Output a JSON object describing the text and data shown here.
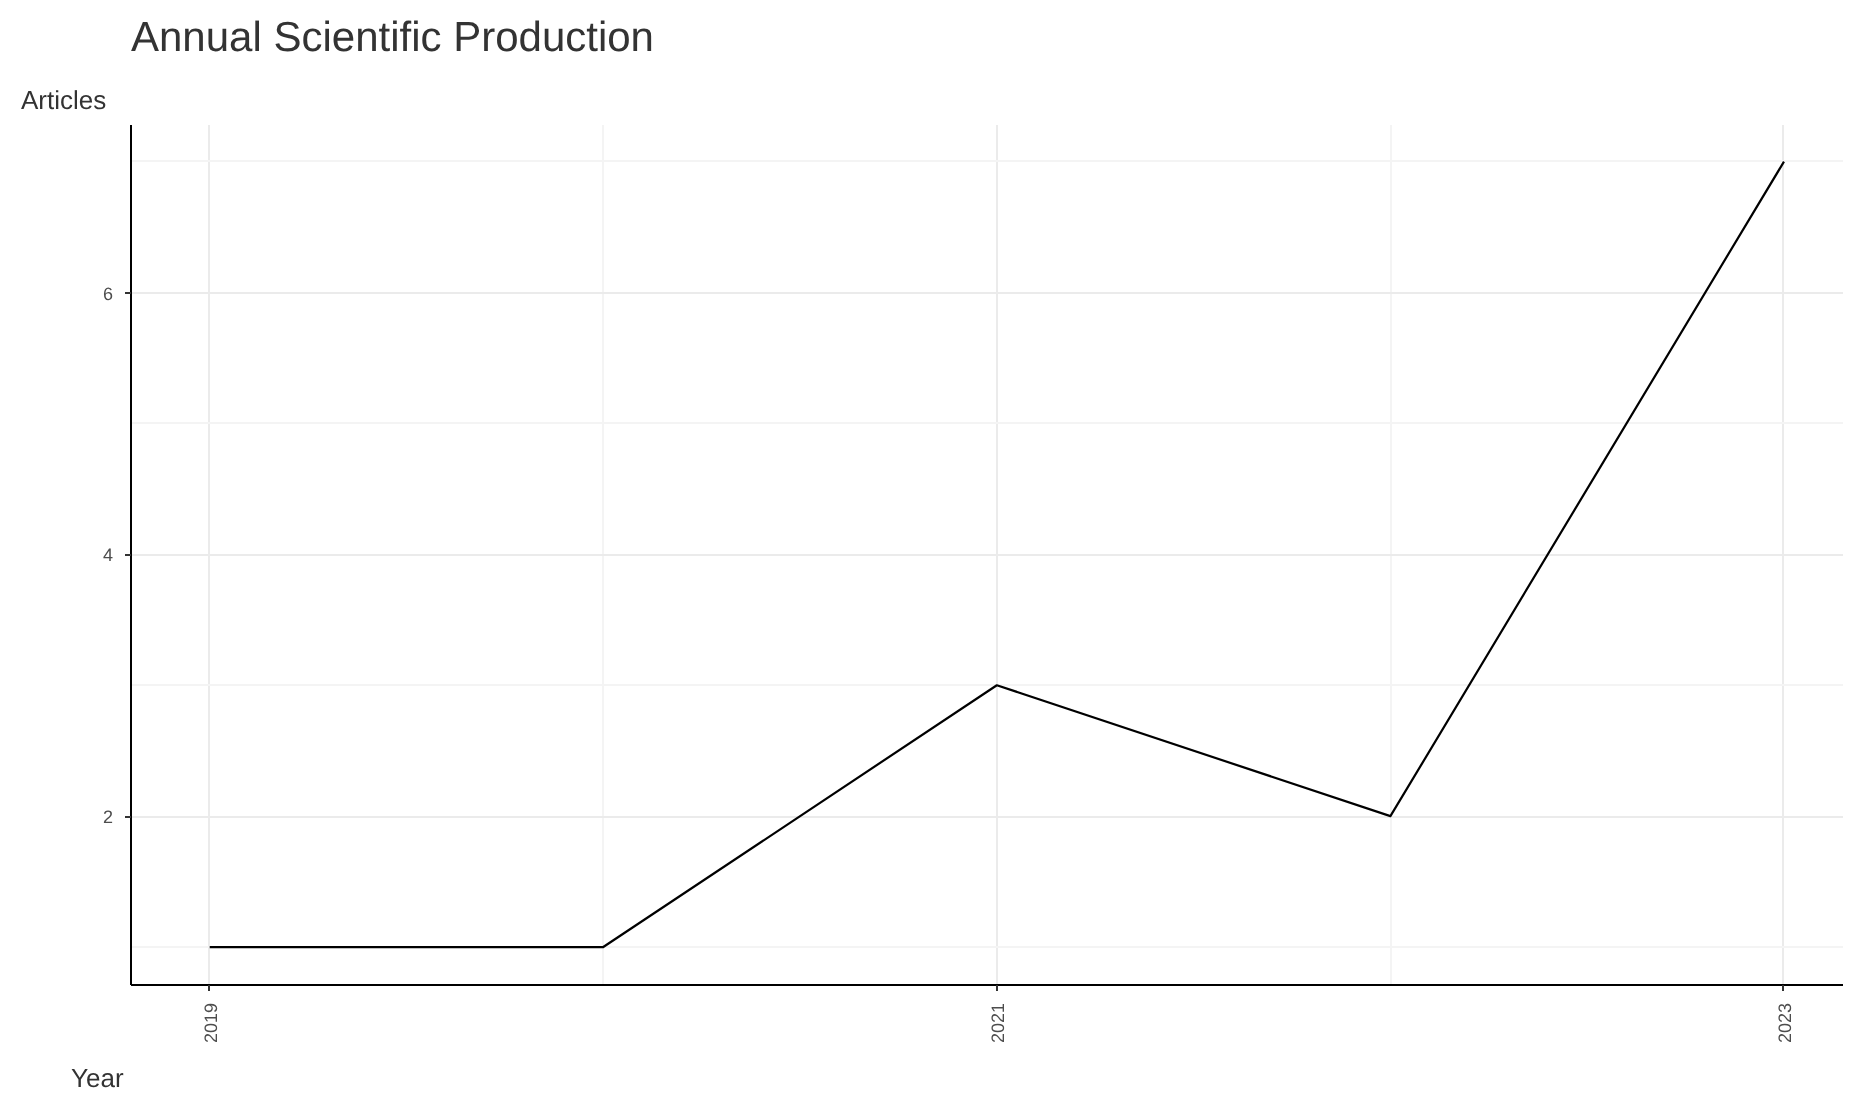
{
  "chart_data": {
    "type": "line",
    "title": "Annual Scientific Production",
    "xlabel": "Year",
    "ylabel": "Articles",
    "x": [
      2019,
      2020,
      2021,
      2022,
      2023
    ],
    "series": [
      {
        "color": "#000000",
        "values": [
          1,
          1,
          3,
          2,
          7
        ]
      }
    ],
    "xlim": [
      2018.8,
      2023.15
    ],
    "ylim": [
      0.71,
      7.28
    ],
    "xticks": [
      2019,
      2021,
      2023
    ],
    "yticks": [
      2,
      4,
      6
    ],
    "grid": true,
    "marker": "none",
    "line_style": "solid"
  }
}
